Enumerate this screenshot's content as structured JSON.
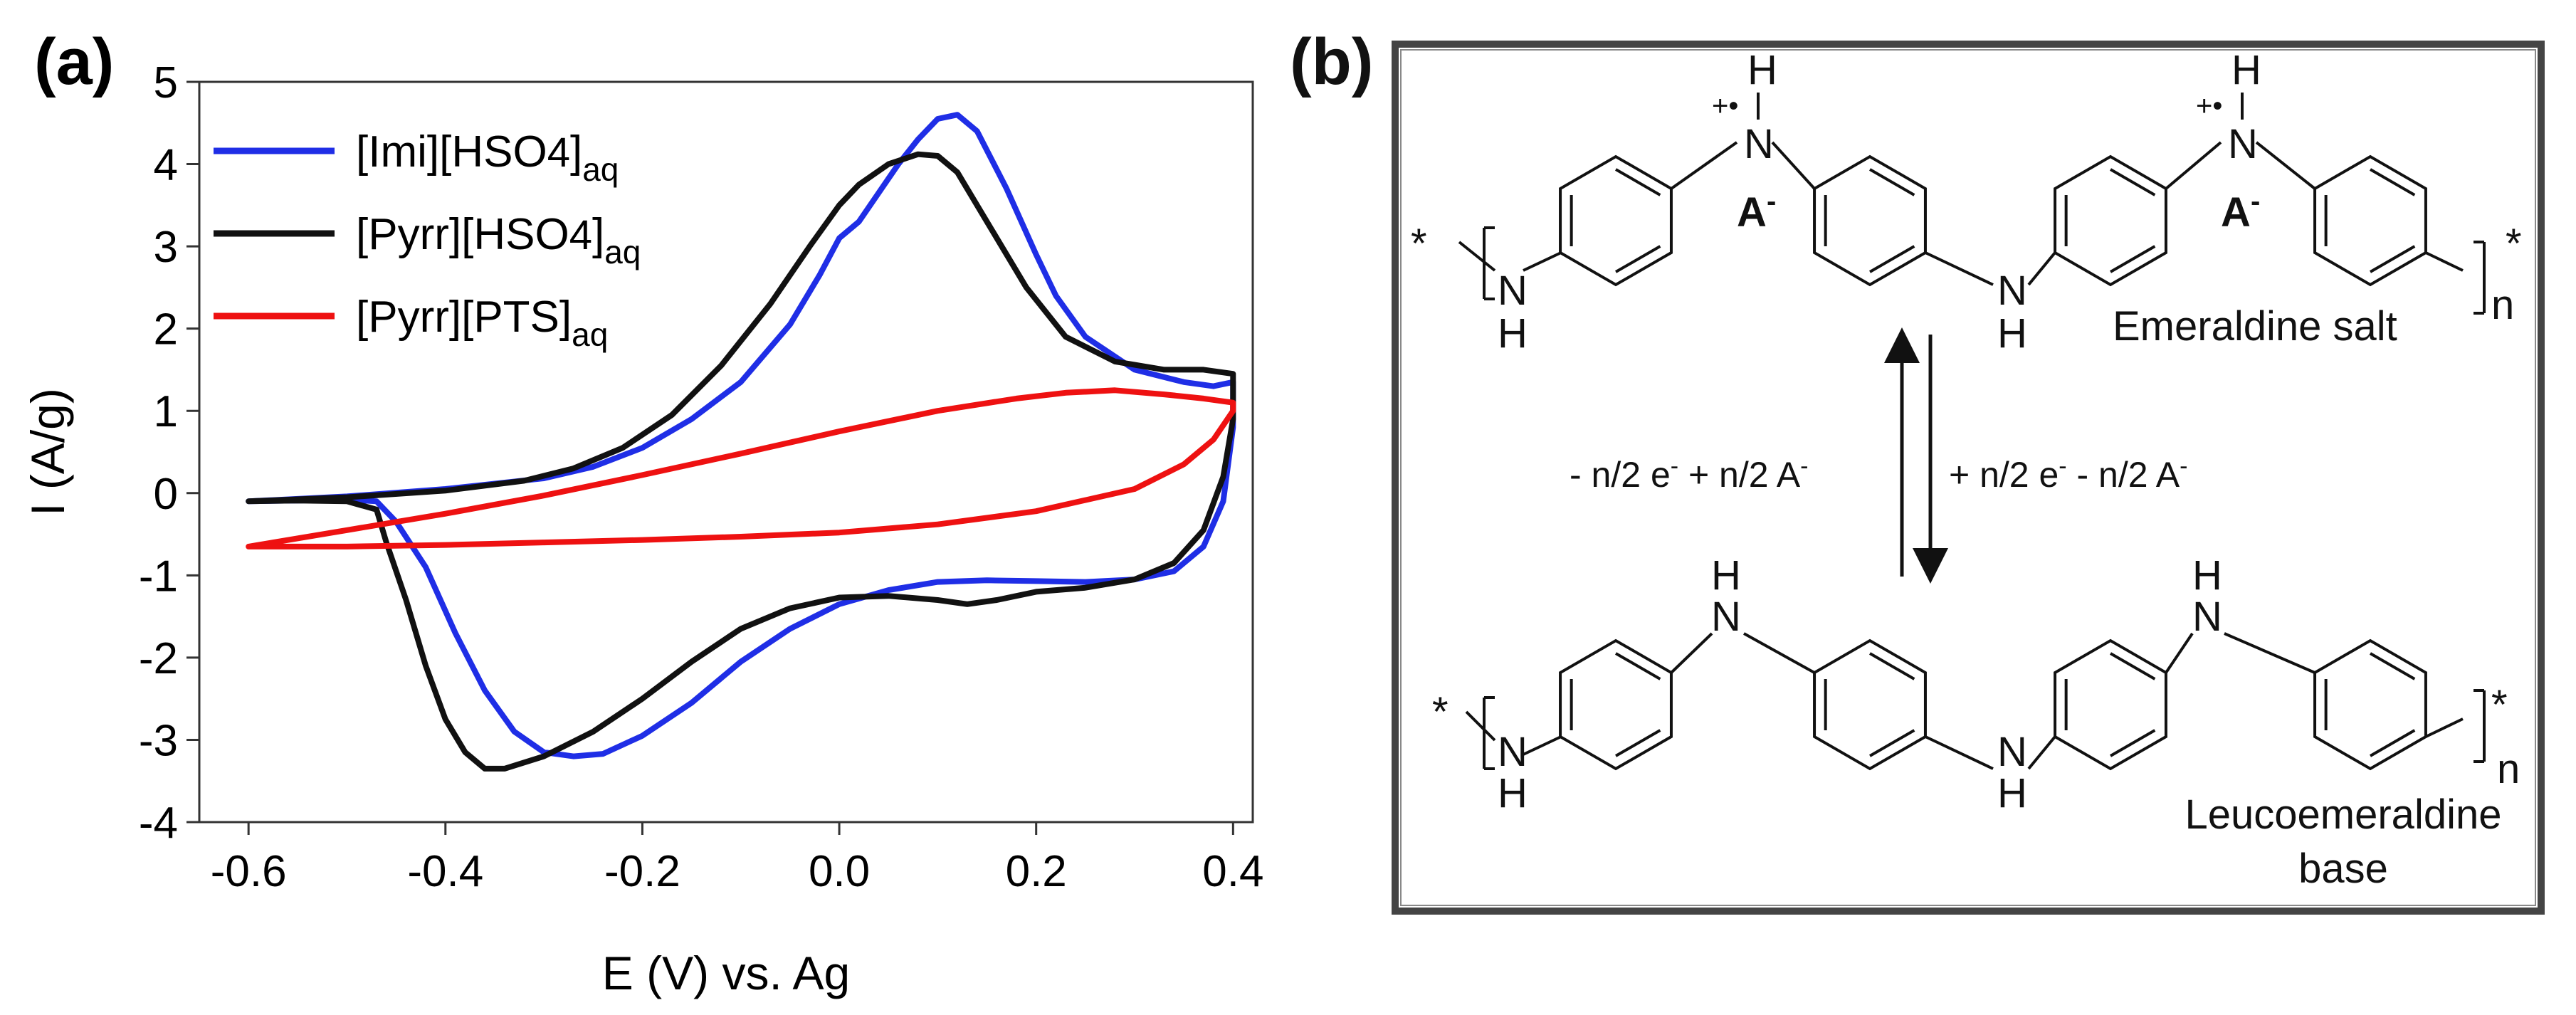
{
  "panel_a": {
    "label": "(a)",
    "chart_data": {
      "type": "line",
      "title": "",
      "xlabel": "E (V) vs. Ag",
      "ylabel": "I (A/g)",
      "xlim": [
        -0.65,
        0.42
      ],
      "ylim": [
        -4,
        5
      ],
      "xticks": [
        -0.6,
        -0.4,
        -0.2,
        0.0,
        0.2,
        0.4
      ],
      "xtick_labels": [
        "-0.6",
        "-0.4",
        "-0.2",
        "0.0",
        "0.2",
        "0.4"
      ],
      "yticks": [
        -4,
        -3,
        -2,
        -1,
        0,
        1,
        2,
        3,
        4,
        5
      ],
      "ytick_labels": [
        "-4",
        "-3",
        "-2",
        "-1",
        "0",
        "1",
        "2",
        "3",
        "4",
        "5"
      ],
      "grid": false,
      "legend_position": "top-left",
      "series": [
        {
          "name_main": "[Imi][HSO",
          "name_sub": "4",
          "name_end": "]",
          "name_subscript": "aq",
          "color": "#1f2ee6",
          "points": [
            [
              -0.6,
              -0.1
            ],
            [
              -0.55,
              -0.09
            ],
            [
              -0.5,
              -0.08
            ],
            [
              -0.47,
              -0.1
            ],
            [
              -0.45,
              -0.35
            ],
            [
              -0.42,
              -0.9
            ],
            [
              -0.39,
              -1.7
            ],
            [
              -0.36,
              -2.4
            ],
            [
              -0.33,
              -2.9
            ],
            [
              -0.3,
              -3.15
            ],
            [
              -0.27,
              -3.2
            ],
            [
              -0.24,
              -3.17
            ],
            [
              -0.2,
              -2.95
            ],
            [
              -0.15,
              -2.55
            ],
            [
              -0.1,
              -2.05
            ],
            [
              -0.05,
              -1.65
            ],
            [
              0.0,
              -1.35
            ],
            [
              0.05,
              -1.18
            ],
            [
              0.1,
              -1.08
            ],
            [
              0.15,
              -1.06
            ],
            [
              0.2,
              -1.07
            ],
            [
              0.25,
              -1.08
            ],
            [
              0.3,
              -1.05
            ],
            [
              0.34,
              -0.95
            ],
            [
              0.37,
              -0.65
            ],
            [
              0.39,
              -0.1
            ],
            [
              0.4,
              0.8
            ],
            [
              0.4,
              1.35
            ],
            [
              0.38,
              1.3
            ],
            [
              0.35,
              1.35
            ],
            [
              0.3,
              1.5
            ],
            [
              0.25,
              1.9
            ],
            [
              0.22,
              2.4
            ],
            [
              0.2,
              2.9
            ],
            [
              0.17,
              3.7
            ],
            [
              0.14,
              4.4
            ],
            [
              0.12,
              4.6
            ],
            [
              0.1,
              4.55
            ],
            [
              0.08,
              4.3
            ],
            [
              0.06,
              4.0
            ],
            [
              0.04,
              3.65
            ],
            [
              0.02,
              3.3
            ],
            [
              0.0,
              3.1
            ],
            [
              -0.02,
              2.65
            ],
            [
              -0.05,
              2.05
            ],
            [
              -0.1,
              1.35
            ],
            [
              -0.15,
              0.9
            ],
            [
              -0.2,
              0.55
            ],
            [
              -0.25,
              0.32
            ],
            [
              -0.3,
              0.18
            ],
            [
              -0.4,
              0.05
            ],
            [
              -0.5,
              -0.04
            ],
            [
              -0.6,
              -0.1
            ]
          ]
        },
        {
          "name_main": "[Pyrr][HSO",
          "name_sub": "4",
          "name_end": "]",
          "name_subscript": "aq",
          "color": "#111111",
          "points": [
            [
              -0.6,
              -0.1
            ],
            [
              -0.55,
              -0.09
            ],
            [
              -0.5,
              -0.1
            ],
            [
              -0.47,
              -0.2
            ],
            [
              -0.46,
              -0.6
            ],
            [
              -0.44,
              -1.3
            ],
            [
              -0.42,
              -2.1
            ],
            [
              -0.4,
              -2.75
            ],
            [
              -0.38,
              -3.15
            ],
            [
              -0.36,
              -3.35
            ],
            [
              -0.34,
              -3.35
            ],
            [
              -0.3,
              -3.2
            ],
            [
              -0.25,
              -2.9
            ],
            [
              -0.2,
              -2.5
            ],
            [
              -0.15,
              -2.05
            ],
            [
              -0.1,
              -1.65
            ],
            [
              -0.05,
              -1.4
            ],
            [
              0.0,
              -1.27
            ],
            [
              0.05,
              -1.25
            ],
            [
              0.1,
              -1.3
            ],
            [
              0.13,
              -1.35
            ],
            [
              0.16,
              -1.3
            ],
            [
              0.2,
              -1.2
            ],
            [
              0.25,
              -1.15
            ],
            [
              0.3,
              -1.05
            ],
            [
              0.34,
              -0.85
            ],
            [
              0.37,
              -0.45
            ],
            [
              0.39,
              0.2
            ],
            [
              0.4,
              0.9
            ],
            [
              0.4,
              1.45
            ],
            [
              0.37,
              1.5
            ],
            [
              0.33,
              1.5
            ],
            [
              0.28,
              1.6
            ],
            [
              0.23,
              1.9
            ],
            [
              0.19,
              2.5
            ],
            [
              0.15,
              3.3
            ],
            [
              0.12,
              3.9
            ],
            [
              0.1,
              4.1
            ],
            [
              0.08,
              4.12
            ],
            [
              0.05,
              4.0
            ],
            [
              0.02,
              3.75
            ],
            [
              0.0,
              3.5
            ],
            [
              -0.03,
              3.0
            ],
            [
              -0.07,
              2.3
            ],
            [
              -0.12,
              1.55
            ],
            [
              -0.17,
              0.95
            ],
            [
              -0.22,
              0.55
            ],
            [
              -0.27,
              0.3
            ],
            [
              -0.32,
              0.15
            ],
            [
              -0.4,
              0.03
            ],
            [
              -0.5,
              -0.05
            ],
            [
              -0.6,
              -0.1
            ]
          ]
        },
        {
          "name_main": "[Pyrr][PTS]",
          "name_sub": "",
          "name_end": "",
          "name_subscript": "aq",
          "color": "#ee1111",
          "points": [
            [
              -0.6,
              -0.65
            ],
            [
              -0.5,
              -0.65
            ],
            [
              -0.4,
              -0.63
            ],
            [
              -0.3,
              -0.6
            ],
            [
              -0.2,
              -0.57
            ],
            [
              -0.1,
              -0.53
            ],
            [
              0.0,
              -0.48
            ],
            [
              0.1,
              -0.38
            ],
            [
              0.2,
              -0.22
            ],
            [
              0.3,
              0.05
            ],
            [
              0.35,
              0.35
            ],
            [
              0.38,
              0.65
            ],
            [
              0.4,
              1.0
            ],
            [
              0.4,
              1.1
            ],
            [
              0.37,
              1.15
            ],
            [
              0.33,
              1.2
            ],
            [
              0.28,
              1.25
            ],
            [
              0.23,
              1.22
            ],
            [
              0.18,
              1.15
            ],
            [
              0.1,
              1.0
            ],
            [
              0.0,
              0.75
            ],
            [
              -0.1,
              0.48
            ],
            [
              -0.2,
              0.22
            ],
            [
              -0.3,
              -0.03
            ],
            [
              -0.4,
              -0.25
            ],
            [
              -0.5,
              -0.45
            ],
            [
              -0.6,
              -0.65
            ]
          ]
        }
      ]
    }
  },
  "panel_b": {
    "label": "(b)",
    "top_structure": {
      "cation_h": "H",
      "cation_charge": "+•",
      "cation_n": "N",
      "counterion": "A",
      "counterion_charge": "-",
      "amine_n": "N",
      "amine_h": "H",
      "end_star": "*",
      "repeat_n": "n",
      "name": "Emeraldine salt"
    },
    "arrow_left_label": "- n/2 e",
    "arrow_left_sup": "-",
    "arrow_left_mid": " + n/2 A",
    "arrow_left_sup2": "-",
    "arrow_right_label": "+ n/2 e",
    "arrow_right_sup": "-",
    "arrow_right_mid": " - n/2 A",
    "arrow_right_sup2": "-",
    "bottom_structure": {
      "amine_n": "N",
      "amine_h": "H",
      "end_star": "*",
      "repeat_n": "n",
      "name_line1": "Leucoemeraldine",
      "name_line2": "base"
    }
  }
}
